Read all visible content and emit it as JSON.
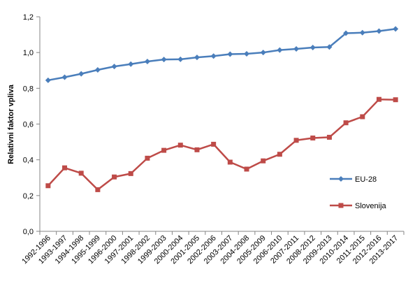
{
  "chart_data": {
    "type": "line",
    "title": "",
    "xlabel": "",
    "ylabel": "Relativni faktor vpliva",
    "ylim": [
      0,
      1.2
    ],
    "yticks": [
      "0,0",
      "0,2",
      "0,4",
      "0,6",
      "0,8",
      "1,0",
      "1,2"
    ],
    "grid": false,
    "legend_position": "right",
    "categories": [
      "1992-1996",
      "1993-1997",
      "1994-1998",
      "1995-1999",
      "1996-2000",
      "1997-2001",
      "1998-2002",
      "1999-2003",
      "2000-2004",
      "2001-2005",
      "2002-2006",
      "2003-2007",
      "2004-2008",
      "2005-2009",
      "2006-2010",
      "2007-2011",
      "2008-2012",
      "2009-2013",
      "2010-2014",
      "2011-2015",
      "2012-2016",
      "2013-2017"
    ],
    "series": [
      {
        "name": "EU-28",
        "color": "#4a7ebb",
        "marker": "diamond",
        "values": [
          0.845,
          0.862,
          0.881,
          0.903,
          0.922,
          0.935,
          0.95,
          0.961,
          0.962,
          0.973,
          0.98,
          0.991,
          0.993,
          1.0,
          1.014,
          1.02,
          1.028,
          1.031,
          1.108,
          1.111,
          1.12,
          1.132
        ]
      },
      {
        "name": "Slovenija",
        "color": "#be4b48",
        "marker": "square",
        "values": [
          0.255,
          0.355,
          0.325,
          0.233,
          0.304,
          0.323,
          0.409,
          0.453,
          0.482,
          0.456,
          0.487,
          0.387,
          0.348,
          0.394,
          0.431,
          0.509,
          0.522,
          0.526,
          0.607,
          0.641,
          0.738,
          0.736
        ]
      }
    ]
  }
}
